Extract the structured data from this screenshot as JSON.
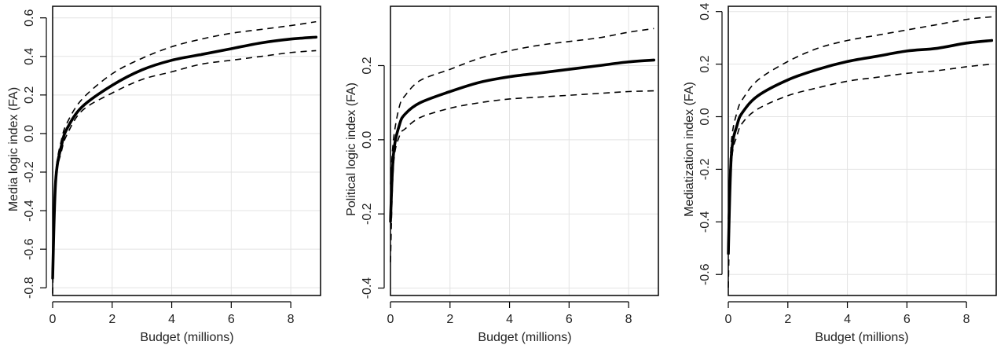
{
  "figure": {
    "colors": {
      "line": "#000000",
      "grid": "#e3e3e3",
      "axis": "#000000",
      "background": "#ffffff"
    }
  },
  "chart_data": [
    {
      "type": "line",
      "xlabel": "Budget (millions)",
      "ylabel": "Media logic index (FA)",
      "xlim": [
        0,
        9
      ],
      "ylim": [
        -0.84,
        0.66
      ],
      "xticks": [
        "0",
        "2",
        "4",
        "6",
        "8"
      ],
      "yticks": [
        "-0.8",
        "-0.6",
        "-0.4",
        "-0.2",
        "0.0",
        "0.2",
        "0.4",
        "0.6"
      ],
      "grid": true,
      "x": [
        0,
        0.1,
        0.3,
        0.5,
        1,
        2,
        3,
        4,
        5,
        6,
        7,
        8,
        8.85
      ],
      "series": [
        {
          "style": "solid",
          "values": [
            -0.75,
            -0.25,
            -0.06,
            0.03,
            0.14,
            0.25,
            0.33,
            0.38,
            0.41,
            0.44,
            0.47,
            0.49,
            0.5
          ]
        },
        {
          "style": "dashed",
          "values": [
            -0.83,
            -0.27,
            -0.09,
            0.0,
            0.12,
            0.21,
            0.28,
            0.32,
            0.36,
            0.38,
            0.4,
            0.42,
            0.43
          ]
        },
        {
          "style": "dashed",
          "values": [
            -0.68,
            -0.22,
            -0.03,
            0.06,
            0.18,
            0.31,
            0.39,
            0.45,
            0.49,
            0.52,
            0.54,
            0.56,
            0.58
          ]
        }
      ]
    },
    {
      "type": "line",
      "xlabel": "Budget (millions)",
      "ylabel": "Political logic index (FA)",
      "xlim": [
        0,
        9
      ],
      "ylim": [
        -0.42,
        0.36
      ],
      "xticks": [
        "0",
        "2",
        "4",
        "6",
        "8"
      ],
      "yticks": [
        "-0.4",
        "-0.2",
        "0.0",
        "0.2"
      ],
      "grid": true,
      "x": [
        0,
        0.1,
        0.3,
        0.5,
        1,
        2,
        3,
        4,
        5,
        6,
        7,
        8,
        8.85
      ],
      "series": [
        {
          "style": "solid",
          "values": [
            -0.22,
            -0.04,
            0.04,
            0.07,
            0.1,
            0.13,
            0.155,
            0.17,
            0.18,
            0.19,
            0.2,
            0.21,
            0.215
          ]
        },
        {
          "style": "dashed",
          "values": [
            -0.33,
            -0.07,
            0.01,
            0.03,
            0.06,
            0.085,
            0.1,
            0.11,
            0.115,
            0.12,
            0.125,
            0.13,
            0.132
          ]
        },
        {
          "style": "dashed",
          "values": [
            -0.12,
            0.0,
            0.09,
            0.12,
            0.16,
            0.19,
            0.22,
            0.24,
            0.255,
            0.265,
            0.275,
            0.29,
            0.3
          ]
        }
      ]
    },
    {
      "type": "line",
      "xlabel": "Budget (millions)",
      "ylabel": "Mediatization index (FA)",
      "xlim": [
        0,
        9
      ],
      "ylim": [
        -0.68,
        0.42
      ],
      "xticks": [
        "0",
        "2",
        "4",
        "6",
        "8"
      ],
      "yticks": [
        "-0.6",
        "-0.4",
        "-0.2",
        "0.0",
        "0.2",
        "0.4"
      ],
      "grid": true,
      "x": [
        0,
        0.1,
        0.3,
        0.5,
        1,
        2,
        3,
        4,
        5,
        6,
        7,
        8,
        8.85
      ],
      "series": [
        {
          "style": "solid",
          "values": [
            -0.52,
            -0.15,
            -0.03,
            0.02,
            0.08,
            0.14,
            0.18,
            0.21,
            0.23,
            0.25,
            0.26,
            0.28,
            0.29
          ]
        },
        {
          "style": "dashed",
          "values": [
            -0.65,
            -0.19,
            -0.07,
            -0.02,
            0.03,
            0.08,
            0.11,
            0.135,
            0.15,
            0.165,
            0.175,
            0.19,
            0.2
          ]
        },
        {
          "style": "dashed",
          "values": [
            -0.39,
            -0.1,
            0.02,
            0.07,
            0.14,
            0.21,
            0.26,
            0.29,
            0.31,
            0.33,
            0.35,
            0.37,
            0.38
          ]
        }
      ]
    }
  ]
}
